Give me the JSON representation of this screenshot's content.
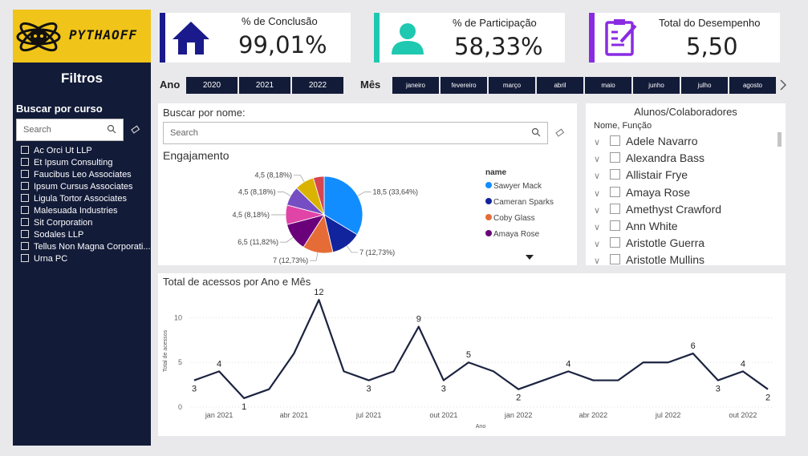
{
  "logo": {
    "text": "PYTHAOFF"
  },
  "sidebar": {
    "title": "Filtros",
    "search_label": "Buscar por curso",
    "search_placeholder": "Search",
    "courses": [
      "Ac Orci Ut LLP",
      "Et Ipsum Consulting",
      "Faucibus Leo Associates",
      "Ipsum Cursus Associates",
      "Ligula Tortor Associates",
      "Malesuada Industries",
      "Sit Corporation",
      "Sodales LLP",
      "Tellus Non Magna Corporati...",
      "Urna PC"
    ]
  },
  "kpis": [
    {
      "label": "% de Conclusão",
      "value": "99,01%",
      "icon": "house-icon",
      "color": "#1a1a8c"
    },
    {
      "label": "% de Participação",
      "value": "58,33%",
      "icon": "person-icon",
      "color": "#1fc8b0"
    },
    {
      "label": "Total do Desempenho",
      "value": "5,50",
      "icon": "clipboard-icon",
      "color": "#8a2be2"
    }
  ],
  "year_slicer": {
    "label": "Ano",
    "years": [
      "2020",
      "2021",
      "2022"
    ]
  },
  "month_slicer": {
    "label": "Mês",
    "months": [
      "janeiro",
      "fevereiro",
      "março",
      "abril",
      "maio",
      "junho",
      "julho",
      "agosto"
    ],
    "next_icon": "chevron-right-icon"
  },
  "engagement": {
    "search_label": "Buscar por nome:",
    "search_placeholder": "Search",
    "title": "Engajamento",
    "legend_title": "name",
    "legend": [
      {
        "name": "Sawyer Mack",
        "color": "#118dff"
      },
      {
        "name": "Cameran Sparks",
        "color": "#12239e"
      },
      {
        "name": "Coby Glass",
        "color": "#e66c37"
      },
      {
        "name": "Amaya Rose",
        "color": "#6b007b"
      }
    ]
  },
  "people": {
    "title": "Alunos/Colaboradores",
    "header": "Nome, Função",
    "names": [
      "Adele Navarro",
      "Alexandra Bass",
      "Allistair Frye",
      "Amaya Rose",
      "Amethyst Crawford",
      "Ann White",
      "Aristotle Guerra",
      "Aristotle Mullins"
    ]
  },
  "chart_data": [
    {
      "type": "pie",
      "slices": [
        {
          "label": "18,5 (33,64%)",
          "value": 18.5,
          "color": "#118dff"
        },
        {
          "label": "7 (12,73%)",
          "value": 7,
          "color": "#12239e"
        },
        {
          "label": "7 (12,73%)",
          "value": 7,
          "color": "#e66c37"
        },
        {
          "label": "6,5 (11,82%)",
          "value": 6.5,
          "color": "#6b007b"
        },
        {
          "label": "4,5 (8,18%)",
          "value": 4.5,
          "color": "#e044a7"
        },
        {
          "label": "4,5 (8,18%)",
          "value": 4.5,
          "color": "#744ec2"
        },
        {
          "label": "4,5 (8,18%)",
          "value": 4.5,
          "color": "#d9b300"
        },
        {
          "label": "",
          "value": 2.5,
          "color": "#d64550"
        }
      ]
    },
    {
      "type": "line",
      "title": "Total de acessos por Ano e Mês",
      "xlabel": "Ano",
      "ylabel": "Total de acessos",
      "x_ticks": [
        "jan 2021",
        "abr 2021",
        "jul 2021",
        "out 2021",
        "jan 2022",
        "abr 2022",
        "jul 2022",
        "out 2022"
      ],
      "y_ticks": [
        "0",
        "5",
        "10"
      ],
      "ylim": [
        0,
        13
      ],
      "values": [
        3,
        4,
        1,
        2,
        6,
        12,
        4,
        3,
        4,
        9,
        3,
        5,
        4,
        2,
        3,
        4,
        3,
        3,
        5,
        5,
        6,
        3,
        4,
        2
      ],
      "data_labels": [
        {
          "index": 0,
          "text": "3"
        },
        {
          "index": 1,
          "text": "4"
        },
        {
          "index": 2,
          "text": "1"
        },
        {
          "index": 5,
          "text": "12"
        },
        {
          "index": 7,
          "text": "3"
        },
        {
          "index": 9,
          "text": "9"
        },
        {
          "index": 10,
          "text": "3"
        },
        {
          "index": 11,
          "text": "5"
        },
        {
          "index": 13,
          "text": "2"
        },
        {
          "index": 15,
          "text": "4"
        },
        {
          "index": 20,
          "text": "6"
        },
        {
          "index": 21,
          "text": "3"
        },
        {
          "index": 22,
          "text": "4"
        },
        {
          "index": 23,
          "text": "2"
        }
      ]
    }
  ]
}
